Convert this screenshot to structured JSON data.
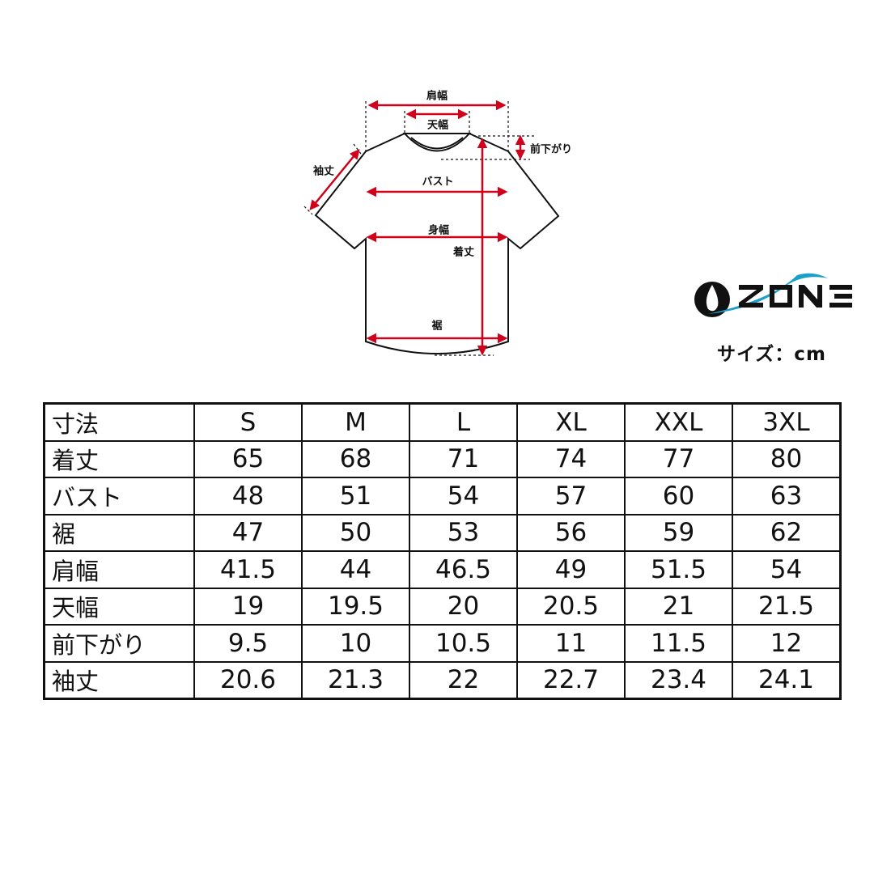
{
  "diagram": {
    "labels": {
      "shoulder": "肩幅",
      "neck_width": "天幅",
      "front_drop": "前下がり",
      "sleeve": "袖丈",
      "bust": "バスト",
      "body_width": "身幅",
      "length": "着丈",
      "hem": "裾"
    },
    "arrow_color": "#d0021b"
  },
  "logo": {
    "text": "OZONE",
    "accent_color": "#1a9fc9"
  },
  "unit_label": "サイズ：cm",
  "table": {
    "header": [
      "寸法",
      "S",
      "M",
      "L",
      "XL",
      "XXL",
      "3XL"
    ],
    "rows": [
      [
        "着丈",
        "65",
        "68",
        "71",
        "74",
        "77",
        "80"
      ],
      [
        "バスト",
        "48",
        "51",
        "54",
        "57",
        "60",
        "63"
      ],
      [
        "裾",
        "47",
        "50",
        "53",
        "56",
        "59",
        "62"
      ],
      [
        "肩幅",
        "41.5",
        "44",
        "46.5",
        "49",
        "51.5",
        "54"
      ],
      [
        "天幅",
        "19",
        "19.5",
        "20",
        "20.5",
        "21",
        "21.5"
      ],
      [
        "前下がり",
        "9.5",
        "10",
        "10.5",
        "11",
        "11.5",
        "12"
      ],
      [
        "袖丈",
        "20.6",
        "21.3",
        "22",
        "22.7",
        "23.4",
        "24.1"
      ]
    ]
  }
}
